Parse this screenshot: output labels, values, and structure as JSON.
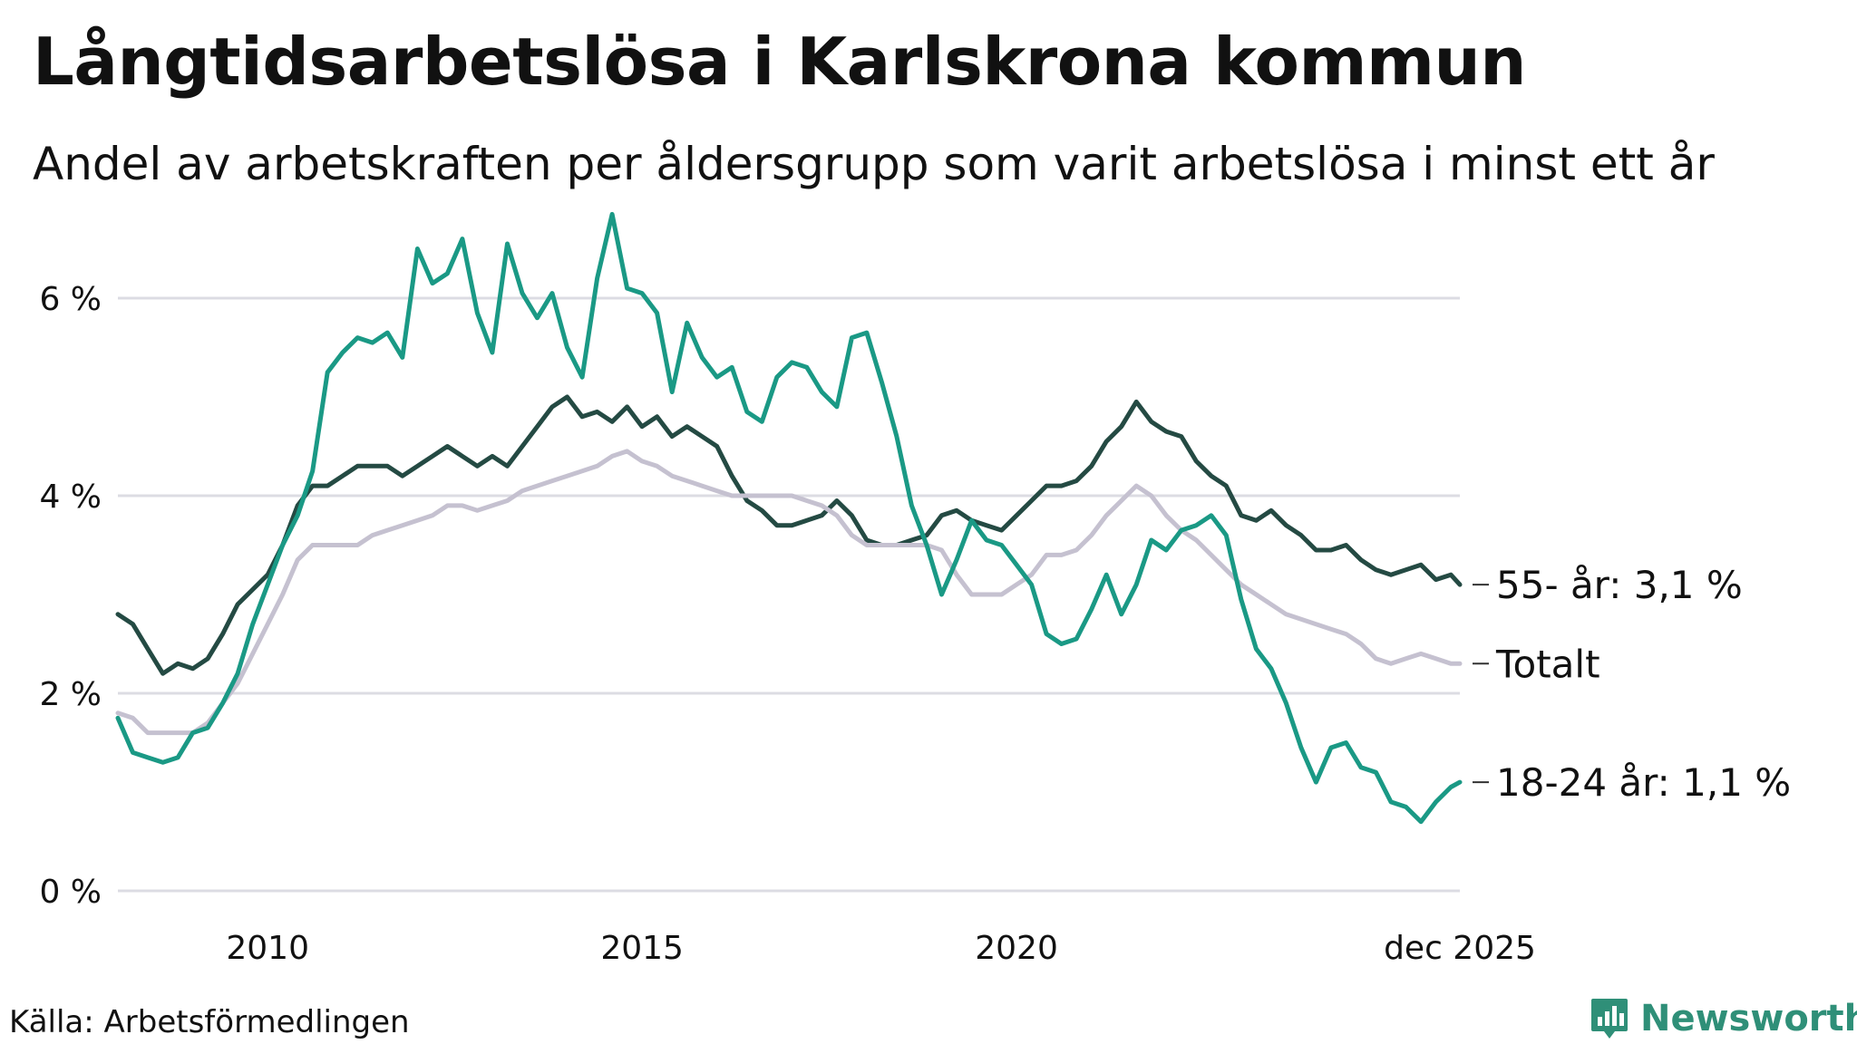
{
  "header": {
    "title": "Långtidsarbetslösa i Karlskrona kommun",
    "subtitle": "Andel av arbetskraften per åldersgrupp som varit arbetslösa i minst ett år"
  },
  "footer": {
    "source": "Källa: Arbetsförmedlingen",
    "brand": "Newsworthy"
  },
  "colors": {
    "age_18_24": "#1a9985",
    "age_55": "#244a43",
    "total": "#c5c1d0",
    "grid": "#dcdce3",
    "brand": "#2f8f78"
  },
  "icons": {
    "brand_logo": "bar-chart-pin-icon"
  },
  "chart_data": {
    "type": "line",
    "xlim": [
      2008.0,
      2025.92
    ],
    "ylim": [
      0,
      7
    ],
    "x_ticks": [
      {
        "value": 2010,
        "label": "2010"
      },
      {
        "value": 2015,
        "label": "2015"
      },
      {
        "value": 2020,
        "label": "2020"
      },
      {
        "value": 2025.92,
        "label": "dec 2025"
      }
    ],
    "y_ticks": [
      {
        "value": 0,
        "label": "0 %"
      },
      {
        "value": 2,
        "label": "2 %"
      },
      {
        "value": 4,
        "label": "4 %"
      },
      {
        "value": 6,
        "label": "6 %"
      }
    ],
    "grid": true,
    "series": [
      {
        "key": "age_55",
        "label": "55- år: 3,1 %",
        "points": [
          [
            2008.0,
            2.8
          ],
          [
            2008.2,
            2.7
          ],
          [
            2008.4,
            2.45
          ],
          [
            2008.6,
            2.2
          ],
          [
            2008.8,
            2.3
          ],
          [
            2009.0,
            2.25
          ],
          [
            2009.2,
            2.35
          ],
          [
            2009.4,
            2.6
          ],
          [
            2009.6,
            2.9
          ],
          [
            2009.8,
            3.05
          ],
          [
            2010.0,
            3.2
          ],
          [
            2010.2,
            3.5
          ],
          [
            2010.4,
            3.9
          ],
          [
            2010.6,
            4.1
          ],
          [
            2010.8,
            4.1
          ],
          [
            2011.0,
            4.2
          ],
          [
            2011.2,
            4.3
          ],
          [
            2011.4,
            4.3
          ],
          [
            2011.6,
            4.3
          ],
          [
            2011.8,
            4.2
          ],
          [
            2012.0,
            4.3
          ],
          [
            2012.2,
            4.4
          ],
          [
            2012.4,
            4.5
          ],
          [
            2012.6,
            4.4
          ],
          [
            2012.8,
            4.3
          ],
          [
            2013.0,
            4.4
          ],
          [
            2013.2,
            4.3
          ],
          [
            2013.4,
            4.5
          ],
          [
            2013.6,
            4.7
          ],
          [
            2013.8,
            4.9
          ],
          [
            2014.0,
            5.0
          ],
          [
            2014.2,
            4.8
          ],
          [
            2014.4,
            4.85
          ],
          [
            2014.6,
            4.75
          ],
          [
            2014.8,
            4.9
          ],
          [
            2015.0,
            4.7
          ],
          [
            2015.2,
            4.8
          ],
          [
            2015.4,
            4.6
          ],
          [
            2015.6,
            4.7
          ],
          [
            2015.8,
            4.6
          ],
          [
            2016.0,
            4.5
          ],
          [
            2016.2,
            4.2
          ],
          [
            2016.4,
            3.95
          ],
          [
            2016.6,
            3.85
          ],
          [
            2016.8,
            3.7
          ],
          [
            2017.0,
            3.7
          ],
          [
            2017.2,
            3.75
          ],
          [
            2017.4,
            3.8
          ],
          [
            2017.6,
            3.95
          ],
          [
            2017.8,
            3.8
          ],
          [
            2018.0,
            3.55
          ],
          [
            2018.2,
            3.5
          ],
          [
            2018.4,
            3.5
          ],
          [
            2018.6,
            3.55
          ],
          [
            2018.8,
            3.6
          ],
          [
            2019.0,
            3.8
          ],
          [
            2019.2,
            3.85
          ],
          [
            2019.4,
            3.75
          ],
          [
            2019.6,
            3.7
          ],
          [
            2019.8,
            3.65
          ],
          [
            2020.0,
            3.8
          ],
          [
            2020.2,
            3.95
          ],
          [
            2020.4,
            4.1
          ],
          [
            2020.6,
            4.1
          ],
          [
            2020.8,
            4.15
          ],
          [
            2021.0,
            4.3
          ],
          [
            2021.2,
            4.55
          ],
          [
            2021.4,
            4.7
          ],
          [
            2021.6,
            4.95
          ],
          [
            2021.8,
            4.75
          ],
          [
            2022.0,
            4.65
          ],
          [
            2022.2,
            4.6
          ],
          [
            2022.4,
            4.35
          ],
          [
            2022.6,
            4.2
          ],
          [
            2022.8,
            4.1
          ],
          [
            2023.0,
            3.8
          ],
          [
            2023.2,
            3.75
          ],
          [
            2023.4,
            3.85
          ],
          [
            2023.6,
            3.7
          ],
          [
            2023.8,
            3.6
          ],
          [
            2024.0,
            3.45
          ],
          [
            2024.2,
            3.45
          ],
          [
            2024.4,
            3.5
          ],
          [
            2024.6,
            3.35
          ],
          [
            2024.8,
            3.25
          ],
          [
            2025.0,
            3.2
          ],
          [
            2025.2,
            3.25
          ],
          [
            2025.4,
            3.3
          ],
          [
            2025.6,
            3.15
          ],
          [
            2025.8,
            3.2
          ],
          [
            2025.92,
            3.1
          ]
        ]
      },
      {
        "key": "total",
        "label": "Totalt",
        "points": [
          [
            2008.0,
            1.8
          ],
          [
            2008.2,
            1.75
          ],
          [
            2008.4,
            1.6
          ],
          [
            2008.6,
            1.6
          ],
          [
            2008.8,
            1.6
          ],
          [
            2009.0,
            1.6
          ],
          [
            2009.2,
            1.7
          ],
          [
            2009.4,
            1.9
          ],
          [
            2009.6,
            2.1
          ],
          [
            2009.8,
            2.4
          ],
          [
            2010.0,
            2.7
          ],
          [
            2010.2,
            3.0
          ],
          [
            2010.4,
            3.35
          ],
          [
            2010.6,
            3.5
          ],
          [
            2010.8,
            3.5
          ],
          [
            2011.0,
            3.5
          ],
          [
            2011.2,
            3.5
          ],
          [
            2011.4,
            3.6
          ],
          [
            2011.6,
            3.65
          ],
          [
            2011.8,
            3.7
          ],
          [
            2012.0,
            3.75
          ],
          [
            2012.2,
            3.8
          ],
          [
            2012.4,
            3.9
          ],
          [
            2012.6,
            3.9
          ],
          [
            2012.8,
            3.85
          ],
          [
            2013.0,
            3.9
          ],
          [
            2013.2,
            3.95
          ],
          [
            2013.4,
            4.05
          ],
          [
            2013.6,
            4.1
          ],
          [
            2013.8,
            4.15
          ],
          [
            2014.0,
            4.2
          ],
          [
            2014.2,
            4.25
          ],
          [
            2014.4,
            4.3
          ],
          [
            2014.6,
            4.4
          ],
          [
            2014.8,
            4.45
          ],
          [
            2015.0,
            4.35
          ],
          [
            2015.2,
            4.3
          ],
          [
            2015.4,
            4.2
          ],
          [
            2015.6,
            4.15
          ],
          [
            2015.8,
            4.1
          ],
          [
            2016.0,
            4.05
          ],
          [
            2016.2,
            4.0
          ],
          [
            2016.4,
            4.0
          ],
          [
            2016.6,
            4.0
          ],
          [
            2016.8,
            4.0
          ],
          [
            2017.0,
            4.0
          ],
          [
            2017.2,
            3.95
          ],
          [
            2017.4,
            3.9
          ],
          [
            2017.6,
            3.8
          ],
          [
            2017.8,
            3.6
          ],
          [
            2018.0,
            3.5
          ],
          [
            2018.2,
            3.5
          ],
          [
            2018.4,
            3.5
          ],
          [
            2018.6,
            3.5
          ],
          [
            2018.8,
            3.5
          ],
          [
            2019.0,
            3.45
          ],
          [
            2019.2,
            3.2
          ],
          [
            2019.4,
            3.0
          ],
          [
            2019.6,
            3.0
          ],
          [
            2019.8,
            3.0
          ],
          [
            2020.0,
            3.1
          ],
          [
            2020.2,
            3.2
          ],
          [
            2020.4,
            3.4
          ],
          [
            2020.6,
            3.4
          ],
          [
            2020.8,
            3.45
          ],
          [
            2021.0,
            3.6
          ],
          [
            2021.2,
            3.8
          ],
          [
            2021.4,
            3.95
          ],
          [
            2021.6,
            4.1
          ],
          [
            2021.8,
            4.0
          ],
          [
            2022.0,
            3.8
          ],
          [
            2022.2,
            3.65
          ],
          [
            2022.4,
            3.55
          ],
          [
            2022.6,
            3.4
          ],
          [
            2022.8,
            3.25
          ],
          [
            2023.0,
            3.1
          ],
          [
            2023.2,
            3.0
          ],
          [
            2023.4,
            2.9
          ],
          [
            2023.6,
            2.8
          ],
          [
            2023.8,
            2.75
          ],
          [
            2024.0,
            2.7
          ],
          [
            2024.2,
            2.65
          ],
          [
            2024.4,
            2.6
          ],
          [
            2024.6,
            2.5
          ],
          [
            2024.8,
            2.35
          ],
          [
            2025.0,
            2.3
          ],
          [
            2025.2,
            2.35
          ],
          [
            2025.4,
            2.4
          ],
          [
            2025.6,
            2.35
          ],
          [
            2025.8,
            2.3
          ],
          [
            2025.92,
            2.3
          ]
        ]
      },
      {
        "key": "age_18_24",
        "label": "18-24 år: 1,1 %",
        "points": [
          [
            2008.0,
            1.75
          ],
          [
            2008.2,
            1.4
          ],
          [
            2008.4,
            1.35
          ],
          [
            2008.6,
            1.3
          ],
          [
            2008.8,
            1.35
          ],
          [
            2009.0,
            1.6
          ],
          [
            2009.2,
            1.65
          ],
          [
            2009.4,
            1.9
          ],
          [
            2009.6,
            2.2
          ],
          [
            2009.8,
            2.7
          ],
          [
            2010.0,
            3.1
          ],
          [
            2010.2,
            3.5
          ],
          [
            2010.4,
            3.8
          ],
          [
            2010.6,
            4.25
          ],
          [
            2010.8,
            5.25
          ],
          [
            2011.0,
            5.45
          ],
          [
            2011.2,
            5.6
          ],
          [
            2011.4,
            5.55
          ],
          [
            2011.6,
            5.65
          ],
          [
            2011.8,
            5.4
          ],
          [
            2012.0,
            6.5
          ],
          [
            2012.2,
            6.15
          ],
          [
            2012.4,
            6.25
          ],
          [
            2012.6,
            6.6
          ],
          [
            2012.8,
            5.85
          ],
          [
            2013.0,
            5.45
          ],
          [
            2013.2,
            6.55
          ],
          [
            2013.4,
            6.05
          ],
          [
            2013.6,
            5.8
          ],
          [
            2013.8,
            6.05
          ],
          [
            2014.0,
            5.5
          ],
          [
            2014.2,
            5.2
          ],
          [
            2014.4,
            6.2
          ],
          [
            2014.6,
            6.85
          ],
          [
            2014.8,
            6.1
          ],
          [
            2015.0,
            6.05
          ],
          [
            2015.2,
            5.85
          ],
          [
            2015.4,
            5.05
          ],
          [
            2015.6,
            5.75
          ],
          [
            2015.8,
            5.4
          ],
          [
            2016.0,
            5.2
          ],
          [
            2016.2,
            5.3
          ],
          [
            2016.4,
            4.85
          ],
          [
            2016.6,
            4.75
          ],
          [
            2016.8,
            5.2
          ],
          [
            2017.0,
            5.35
          ],
          [
            2017.2,
            5.3
          ],
          [
            2017.4,
            5.05
          ],
          [
            2017.6,
            4.9
          ],
          [
            2017.8,
            5.6
          ],
          [
            2018.0,
            5.65
          ],
          [
            2018.2,
            5.15
          ],
          [
            2018.4,
            4.6
          ],
          [
            2018.6,
            3.9
          ],
          [
            2018.8,
            3.5
          ],
          [
            2019.0,
            3.0
          ],
          [
            2019.2,
            3.35
          ],
          [
            2019.4,
            3.75
          ],
          [
            2019.6,
            3.55
          ],
          [
            2019.8,
            3.5
          ],
          [
            2020.0,
            3.3
          ],
          [
            2020.2,
            3.1
          ],
          [
            2020.4,
            2.6
          ],
          [
            2020.6,
            2.5
          ],
          [
            2020.8,
            2.55
          ],
          [
            2021.0,
            2.85
          ],
          [
            2021.2,
            3.2
          ],
          [
            2021.4,
            2.8
          ],
          [
            2021.6,
            3.1
          ],
          [
            2021.8,
            3.55
          ],
          [
            2022.0,
            3.45
          ],
          [
            2022.2,
            3.65
          ],
          [
            2022.4,
            3.7
          ],
          [
            2022.6,
            3.8
          ],
          [
            2022.8,
            3.6
          ],
          [
            2023.0,
            2.95
          ],
          [
            2023.2,
            2.45
          ],
          [
            2023.4,
            2.25
          ],
          [
            2023.6,
            1.9
          ],
          [
            2023.8,
            1.45
          ],
          [
            2024.0,
            1.1
          ],
          [
            2024.2,
            1.45
          ],
          [
            2024.4,
            1.5
          ],
          [
            2024.6,
            1.25
          ],
          [
            2024.8,
            1.2
          ],
          [
            2025.0,
            0.9
          ],
          [
            2025.2,
            0.85
          ],
          [
            2025.4,
            0.7
          ],
          [
            2025.6,
            0.9
          ],
          [
            2025.8,
            1.05
          ],
          [
            2025.92,
            1.1
          ]
        ]
      }
    ]
  }
}
